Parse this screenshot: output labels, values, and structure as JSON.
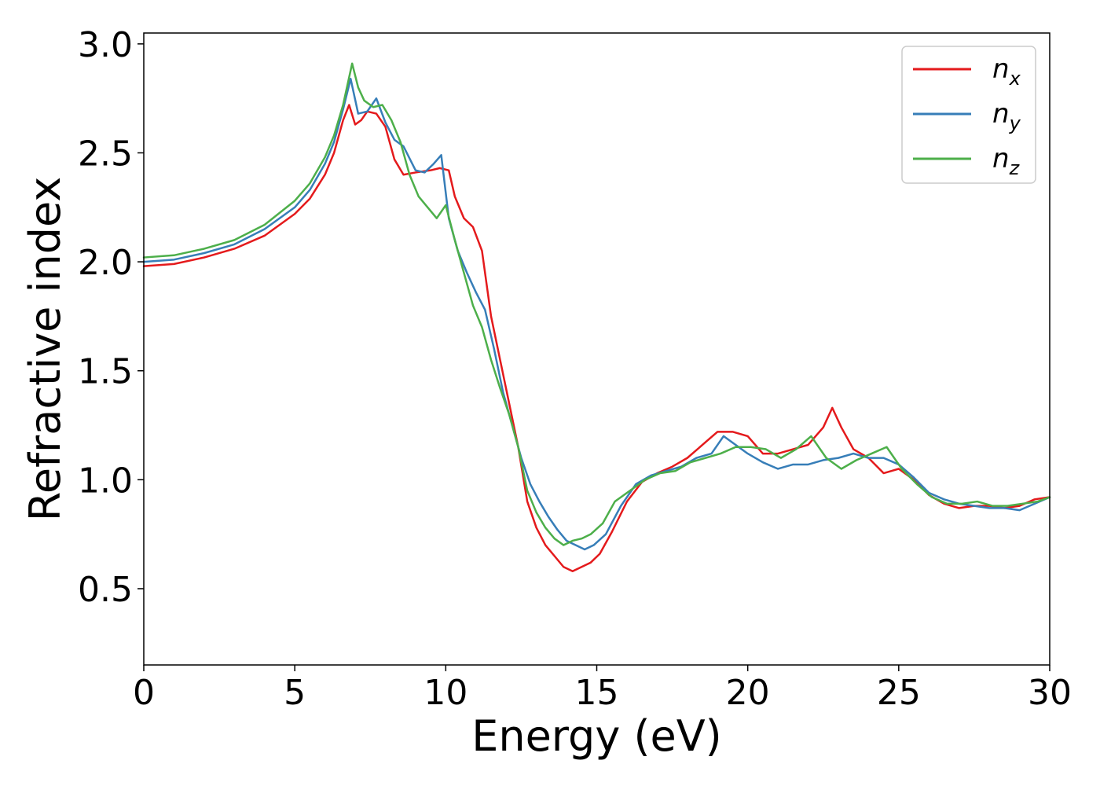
{
  "chart_data": {
    "type": "line",
    "xlabel": "Energy (eV)",
    "ylabel": "Refractive index",
    "xlim": [
      0,
      30
    ],
    "ylim": [
      0.15,
      3.05
    ],
    "xticks": [
      0,
      5,
      10,
      15,
      20,
      25,
      30
    ],
    "yticks": [
      0.5,
      1.0,
      1.5,
      2.0,
      2.5,
      3.0
    ],
    "xtick_labels": [
      "0",
      "5",
      "10",
      "15",
      "20",
      "25",
      "30"
    ],
    "ytick_labels": [
      "0.5",
      "1.0",
      "1.5",
      "2.0",
      "2.5",
      "3.0"
    ],
    "grid": false,
    "legend_position": "top-right",
    "series": [
      {
        "name": "n",
        "subscript": "x",
        "color": "#e41a1c",
        "x": [
          0,
          1,
          2,
          3,
          4,
          5,
          5.5,
          6,
          6.3,
          6.6,
          6.8,
          7.0,
          7.2,
          7.4,
          7.7,
          8.0,
          8.3,
          8.6,
          9.0,
          9.5,
          9.8,
          10.1,
          10.3,
          10.6,
          10.9,
          11.2,
          11.5,
          11.8,
          12.1,
          12.4,
          12.7,
          13.0,
          13.3,
          13.6,
          13.9,
          14.2,
          14.5,
          14.8,
          15.1,
          15.5,
          16.0,
          16.5,
          17.0,
          17.5,
          18.0,
          18.5,
          19.0,
          19.5,
          20.0,
          20.5,
          21.0,
          21.5,
          22.0,
          22.5,
          22.8,
          23.1,
          23.5,
          24.0,
          24.5,
          25.0,
          25.5,
          26.0,
          26.5,
          27.0,
          27.5,
          28.0,
          28.5,
          29.0,
          29.5,
          30.0
        ],
        "y": [
          1.98,
          1.99,
          2.02,
          2.06,
          2.12,
          2.22,
          2.29,
          2.4,
          2.5,
          2.65,
          2.72,
          2.63,
          2.65,
          2.69,
          2.68,
          2.62,
          2.47,
          2.4,
          2.41,
          2.42,
          2.43,
          2.42,
          2.3,
          2.2,
          2.16,
          2.05,
          1.75,
          1.55,
          1.35,
          1.15,
          0.9,
          0.78,
          0.7,
          0.65,
          0.6,
          0.58,
          0.6,
          0.62,
          0.66,
          0.76,
          0.9,
          0.99,
          1.03,
          1.06,
          1.1,
          1.16,
          1.22,
          1.22,
          1.2,
          1.12,
          1.12,
          1.14,
          1.16,
          1.24,
          1.33,
          1.24,
          1.14,
          1.1,
          1.03,
          1.05,
          1.0,
          0.93,
          0.89,
          0.87,
          0.88,
          0.88,
          0.87,
          0.88,
          0.91,
          0.92
        ]
      },
      {
        "name": "n",
        "subscript": "y",
        "color": "#377eb8",
        "x": [
          0,
          1,
          2,
          3,
          4,
          5,
          5.5,
          6,
          6.3,
          6.6,
          6.85,
          7.1,
          7.4,
          7.7,
          8.0,
          8.3,
          8.6,
          9.0,
          9.3,
          9.6,
          9.85,
          10.1,
          10.4,
          10.7,
          11.0,
          11.3,
          11.6,
          11.9,
          12.2,
          12.5,
          12.8,
          13.1,
          13.4,
          13.7,
          14.0,
          14.3,
          14.6,
          14.9,
          15.3,
          15.8,
          16.3,
          16.8,
          17.3,
          17.8,
          18.3,
          18.8,
          19.2,
          19.6,
          20.0,
          20.5,
          21.0,
          21.5,
          22.0,
          22.5,
          23.0,
          23.5,
          24.0,
          24.5,
          25.0,
          25.5,
          26.0,
          26.5,
          27.0,
          27.5,
          28.0,
          28.5,
          29.0,
          29.5,
          30.0
        ],
        "y": [
          2.0,
          2.01,
          2.04,
          2.08,
          2.15,
          2.25,
          2.33,
          2.45,
          2.55,
          2.7,
          2.84,
          2.68,
          2.69,
          2.75,
          2.64,
          2.56,
          2.53,
          2.42,
          2.41,
          2.45,
          2.49,
          2.2,
          2.05,
          1.95,
          1.86,
          1.78,
          1.6,
          1.4,
          1.25,
          1.1,
          0.98,
          0.9,
          0.83,
          0.77,
          0.72,
          0.7,
          0.68,
          0.7,
          0.75,
          0.88,
          0.98,
          1.02,
          1.04,
          1.06,
          1.1,
          1.12,
          1.2,
          1.16,
          1.12,
          1.08,
          1.05,
          1.07,
          1.07,
          1.09,
          1.1,
          1.12,
          1.1,
          1.1,
          1.07,
          1.01,
          0.94,
          0.91,
          0.89,
          0.88,
          0.87,
          0.87,
          0.86,
          0.89,
          0.92
        ]
      },
      {
        "name": "n",
        "subscript": "z",
        "color": "#4daf4a",
        "x": [
          0,
          1,
          2,
          3,
          4,
          5,
          5.5,
          6,
          6.3,
          6.6,
          6.9,
          7.1,
          7.3,
          7.6,
          7.9,
          8.2,
          8.5,
          8.8,
          9.1,
          9.4,
          9.7,
          10.0,
          10.3,
          10.6,
          10.9,
          11.2,
          11.5,
          11.8,
          12.1,
          12.4,
          12.7,
          13.0,
          13.3,
          13.6,
          13.9,
          14.2,
          14.5,
          14.8,
          15.2,
          15.6,
          16.1,
          16.6,
          17.1,
          17.6,
          18.1,
          18.6,
          19.1,
          19.6,
          20.1,
          20.6,
          21.1,
          21.6,
          22.1,
          22.6,
          23.1,
          23.6,
          24.1,
          24.6,
          25.1,
          25.6,
          26.1,
          26.6,
          27.1,
          27.6,
          28.1,
          28.6,
          29.1,
          29.6,
          30.0
        ],
        "y": [
          2.02,
          2.03,
          2.06,
          2.1,
          2.17,
          2.28,
          2.36,
          2.48,
          2.58,
          2.72,
          2.91,
          2.8,
          2.74,
          2.71,
          2.72,
          2.65,
          2.55,
          2.4,
          2.3,
          2.25,
          2.2,
          2.26,
          2.1,
          1.95,
          1.8,
          1.7,
          1.55,
          1.42,
          1.3,
          1.15,
          0.95,
          0.85,
          0.78,
          0.73,
          0.7,
          0.72,
          0.73,
          0.75,
          0.8,
          0.9,
          0.95,
          1.0,
          1.03,
          1.04,
          1.08,
          1.1,
          1.12,
          1.15,
          1.15,
          1.14,
          1.1,
          1.14,
          1.2,
          1.1,
          1.05,
          1.09,
          1.12,
          1.15,
          1.05,
          0.98,
          0.92,
          0.89,
          0.89,
          0.9,
          0.88,
          0.88,
          0.89,
          0.9,
          0.92
        ]
      }
    ]
  }
}
